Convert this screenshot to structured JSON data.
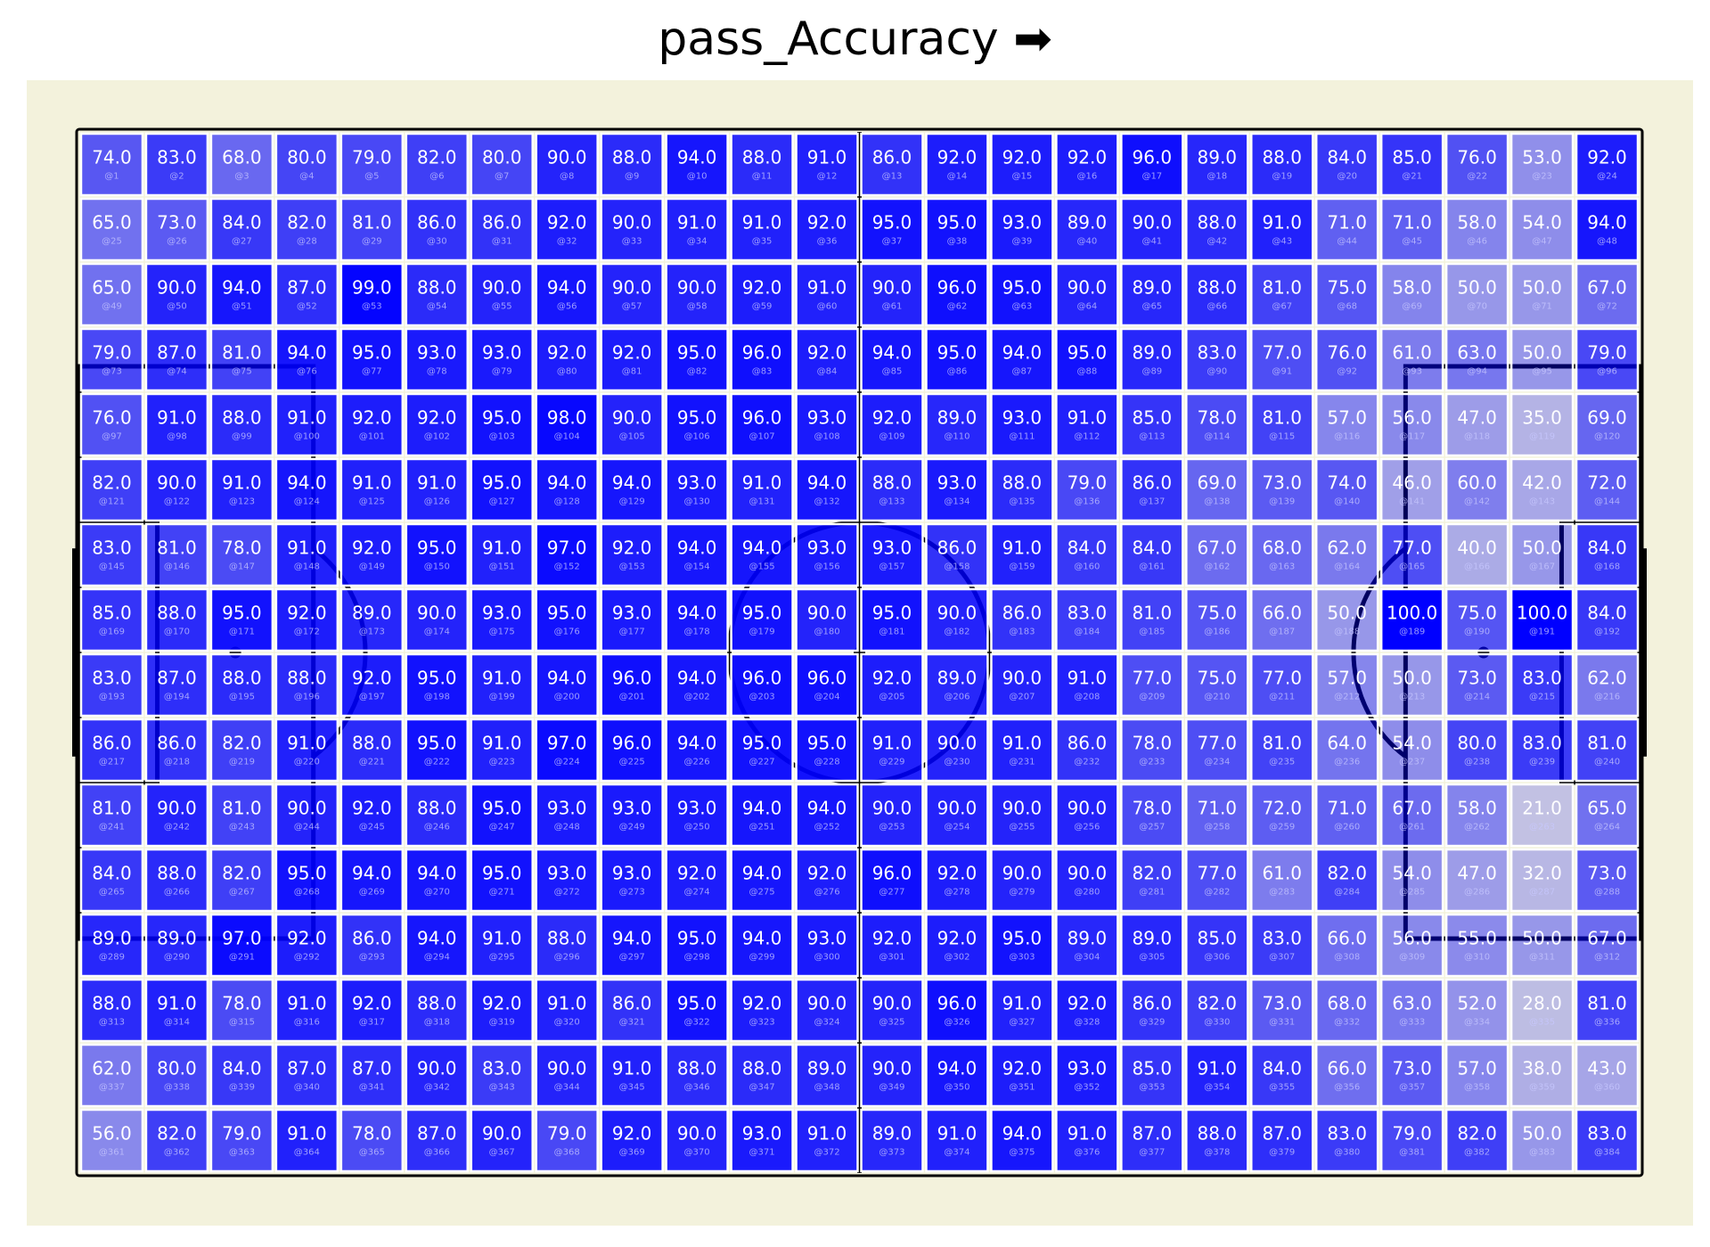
{
  "chart_data": {
    "type": "heatmap",
    "title": "pass_Accuracy ➡",
    "rows": 16,
    "cols": 24,
    "value_format": "one decimal",
    "cell_id_prefix": "@",
    "colors": {
      "background": "#f3f2dc",
      "cell": "#0000ff",
      "cell_border": "#ffffff",
      "pitch_lines": "#000000",
      "label": "#ffffff"
    },
    "values": [
      [
        74,
        83,
        68,
        80,
        79,
        82,
        80,
        90,
        88,
        94,
        88,
        91,
        86,
        92,
        92,
        92,
        96,
        89,
        88,
        84,
        85,
        76,
        53,
        92
      ],
      [
        65,
        73,
        84,
        82,
        81,
        86,
        86,
        92,
        90,
        91,
        91,
        92,
        95,
        95,
        93,
        89,
        90,
        88,
        91,
        71,
        71,
        58,
        54,
        94
      ],
      [
        65,
        90,
        94,
        87,
        99,
        88,
        90,
        94,
        90,
        90,
        92,
        91,
        90,
        96,
        95,
        90,
        89,
        88,
        81,
        75,
        58,
        50,
        50,
        67
      ],
      [
        79,
        87,
        81,
        94,
        95,
        93,
        93,
        92,
        92,
        95,
        96,
        92,
        94,
        95,
        94,
        95,
        89,
        83,
        77,
        76,
        61,
        63,
        50,
        79
      ],
      [
        76,
        91,
        88,
        91,
        92,
        92,
        95,
        98,
        90,
        95,
        96,
        93,
        92,
        89,
        93,
        91,
        85,
        78,
        81,
        57,
        56,
        47,
        35,
        69
      ],
      [
        82,
        90,
        91,
        94,
        91,
        91,
        95,
        94,
        94,
        93,
        91,
        94,
        88,
        93,
        88,
        79,
        86,
        69,
        73,
        74,
        46,
        60,
        42,
        72
      ],
      [
        83,
        81,
        78,
        91,
        92,
        95,
        91,
        97,
        92,
        94,
        94,
        93,
        93,
        86,
        91,
        84,
        84,
        67,
        68,
        62,
        77,
        40,
        50,
        84
      ],
      [
        85,
        88,
        95,
        92,
        89,
        90,
        93,
        95,
        93,
        94,
        95,
        90,
        95,
        90,
        86,
        83,
        81,
        75,
        66,
        50,
        100,
        75,
        100,
        84
      ],
      [
        83,
        87,
        88,
        88,
        92,
        95,
        91,
        94,
        96,
        94,
        96,
        96,
        92,
        89,
        90,
        91,
        77,
        75,
        77,
        57,
        50,
        73,
        83,
        62
      ],
      [
        86,
        86,
        82,
        91,
        88,
        95,
        91,
        97,
        96,
        94,
        95,
        95,
        91,
        90,
        91,
        86,
        78,
        77,
        81,
        64,
        54,
        80,
        83,
        81
      ],
      [
        81,
        90,
        81,
        90,
        92,
        88,
        95,
        93,
        93,
        93,
        94,
        94,
        90,
        90,
        90,
        90,
        78,
        71,
        72,
        71,
        67,
        58,
        21,
        65
      ],
      [
        84,
        88,
        82,
        95,
        94,
        94,
        95,
        93,
        93,
        92,
        94,
        92,
        96,
        92,
        90,
        90,
        82,
        77,
        61,
        82,
        54,
        47,
        32,
        73
      ],
      [
        89,
        89,
        97,
        92,
        86,
        94,
        91,
        88,
        94,
        95,
        94,
        93,
        92,
        92,
        95,
        89,
        89,
        85,
        83,
        66,
        56,
        55,
        50,
        67
      ],
      [
        88,
        91,
        78,
        91,
        92,
        88,
        92,
        91,
        86,
        95,
        92,
        90,
        90,
        96,
        91,
        92,
        86,
        82,
        73,
        68,
        63,
        52,
        28,
        81
      ],
      [
        62,
        80,
        84,
        87,
        87,
        90,
        83,
        90,
        91,
        88,
        88,
        89,
        90,
        94,
        92,
        93,
        85,
        91,
        84,
        66,
        73,
        57,
        38,
        43
      ],
      [
        56,
        82,
        79,
        91,
        78,
        87,
        90,
        79,
        92,
        90,
        93,
        91,
        89,
        91,
        94,
        91,
        87,
        88,
        87,
        83,
        79,
        82,
        50,
        83
      ]
    ]
  }
}
